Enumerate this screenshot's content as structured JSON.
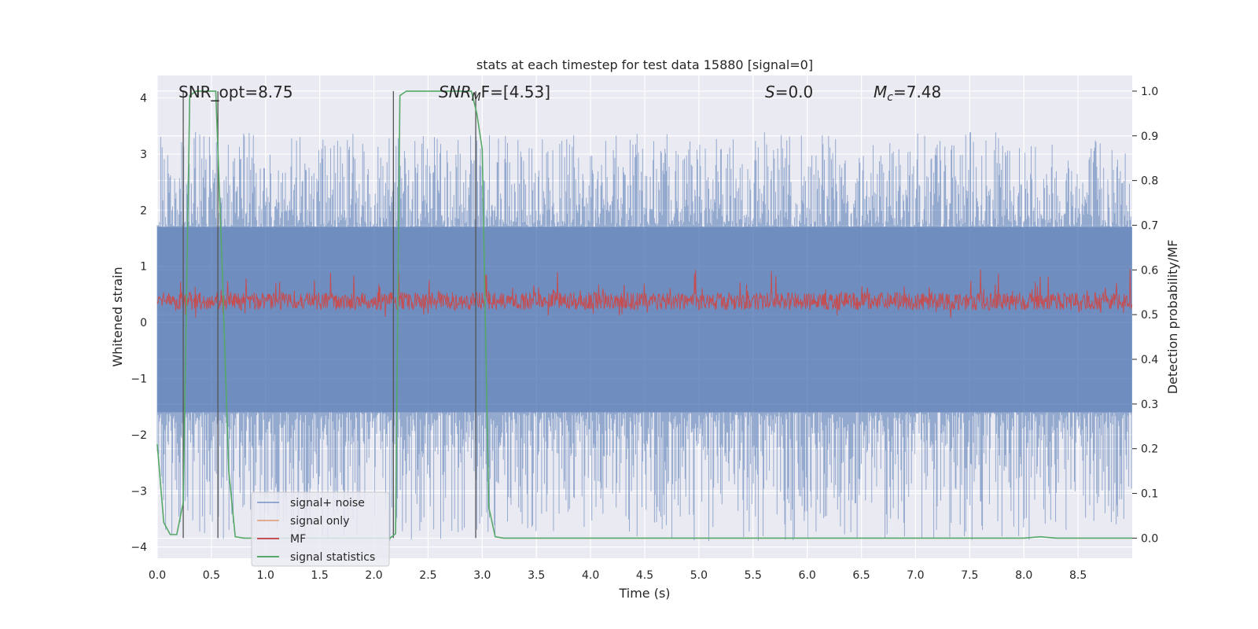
{
  "chart_data": {
    "type": "line",
    "title": "stats at each timestep for test data 15880 [signal=0]",
    "xlabel": "Time (s)",
    "ylabel": "Whitened strain",
    "ylabel_right": "Detection probability/MF",
    "xlim": [
      0.0,
      9.0
    ],
    "ylim": [
      -4.2,
      4.4
    ],
    "ylim_right": [
      -0.045,
      1.035
    ],
    "x_ticks": [
      "0.0",
      "0.5",
      "1.0",
      "1.5",
      "2.0",
      "2.5",
      "3.0",
      "3.5",
      "4.0",
      "4.5",
      "5.0",
      "5.5",
      "6.0",
      "6.5",
      "7.0",
      "7.5",
      "8.0",
      "8.5"
    ],
    "y_ticks": [
      "−4",
      "−3",
      "−2",
      "−1",
      "0",
      "1",
      "2",
      "3",
      "4"
    ],
    "y_ticks_right": [
      "0.0",
      "0.1",
      "0.2",
      "0.3",
      "0.4",
      "0.5",
      "0.6",
      "0.7",
      "0.8",
      "0.9",
      "1.0"
    ],
    "grid": true,
    "legend_position": "lower-left",
    "annotations": {
      "snr_opt": "SNR_opt=8.75",
      "snr_mf_italic": "SNR",
      "snr_mf_sub": "M",
      "snr_mf_rest": "F=[4.53]",
      "s_italic": "S",
      "s_rest": "=0.0",
      "mc_italic": "M",
      "mc_sub": "c",
      "mc_rest": "=7.48"
    },
    "series": [
      {
        "name": "signal+ noise",
        "color": "#4c72b0",
        "axis": "left",
        "band_typical": [
          -1.6,
          1.7
        ],
        "extremes": [
          -3.9,
          3.4
        ]
      },
      {
        "name": "signal only",
        "color": "#dd8452",
        "axis": "left",
        "values": []
      },
      {
        "name": "MF",
        "color": "#c44e52",
        "axis": "right",
        "band_typical": [
          0.51,
          0.55
        ],
        "extremes": [
          0.49,
          0.61
        ]
      },
      {
        "name": "signal statistics",
        "color": "#55a868",
        "axis": "right",
        "x": [
          0.0,
          0.06,
          0.12,
          0.18,
          0.24,
          0.3,
          0.36,
          0.42,
          0.48,
          0.54,
          0.6,
          0.66,
          0.72,
          0.8,
          1.0,
          2.0,
          2.15,
          2.2,
          2.24,
          2.3,
          2.5,
          2.9,
          2.95,
          3.0,
          3.06,
          3.12,
          3.2,
          4.0,
          6.0,
          7.5,
          8.0,
          8.15,
          8.3,
          9.0
        ],
        "y": [
          0.21,
          0.035,
          0.008,
          0.008,
          0.08,
          0.99,
          1.0,
          1.0,
          1.0,
          1.0,
          0.6,
          0.15,
          0.003,
          0.0,
          0.0,
          0.0,
          0.0,
          0.01,
          0.99,
          1.0,
          1.0,
          1.0,
          0.95,
          0.87,
          0.07,
          0.003,
          0.0,
          0.0,
          0.0,
          0.0,
          0.0,
          0.003,
          0.0,
          0.0
        ]
      }
    ],
    "vertical_markers_x": [
      0.24,
      0.56,
      2.18,
      2.94
    ]
  }
}
